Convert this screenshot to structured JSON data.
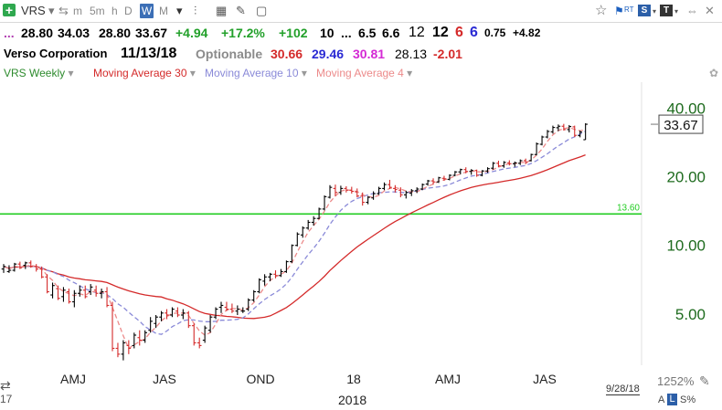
{
  "toolbar": {
    "symbol": "VRS",
    "timeframes": [
      {
        "label": "m",
        "selected": false
      },
      {
        "label": "5m",
        "selected": false
      },
      {
        "label": "h",
        "selected": false
      },
      {
        "label": "D",
        "selected": false
      },
      {
        "label": "W",
        "selected": true
      },
      {
        "label": "M",
        "selected": false
      }
    ],
    "right_icons": [
      "star-icon",
      "flag-icon",
      "rt-badge",
      "s-badge",
      "t-badge",
      "expand-icon",
      "close-icon"
    ],
    "rt_label": "RT",
    "s_label": "S",
    "t_label": "T"
  },
  "quote": {
    "dots": "...",
    "open": "28.80",
    "high": "34.03",
    "low": "28.80",
    "close": "33.67",
    "change": "+4.94",
    "change_pct": "+17.2%",
    "extra": "+102",
    "f1": "10",
    "f2": "...",
    "f3": "6.5",
    "f4": "6.6",
    "f5": "12",
    "f6": "12",
    "f7": "6",
    "f8": "6",
    "f9": "0.75",
    "f10": "+4.82"
  },
  "info": {
    "company": "Verso Corporation",
    "date": "11/13/18",
    "optionable": "Optionable",
    "v1": "30.66",
    "v2": "29.46",
    "v3": "30.81",
    "v4": "28.13",
    "v5": "-2.01"
  },
  "legend": {
    "items": [
      {
        "label": "VRS Weekly",
        "color": "#2e8b2e"
      },
      {
        "label": "Moving Average 30",
        "color": "#d42a2a"
      },
      {
        "label": "Moving Average 10",
        "color": "#8a8ad8"
      },
      {
        "label": "Moving Average 4",
        "color": "#ec8a8a"
      }
    ]
  },
  "chart_data": {
    "type": "ohlc",
    "scale": "log",
    "y_ticks": [
      {
        "value": 40,
        "label": "40.00"
      },
      {
        "value": 20,
        "label": "20.00"
      },
      {
        "value": 10,
        "label": "10.00"
      },
      {
        "value": 5,
        "label": "5.00"
      }
    ],
    "ylim": [
      2.95,
      51.5
    ],
    "x_labels": [
      "AMJ",
      "JAS",
      "OND",
      "18",
      "AMJ",
      "JAS"
    ],
    "year_label": "2018",
    "left_partial_label": "17",
    "date_label": "9/28/18",
    "last_price_label": "33.67",
    "hline": {
      "value": 13.6,
      "label": "13.60",
      "color": "#22cc22"
    },
    "colors": {
      "up": "#000000",
      "down": "#d42a2a",
      "ma30": "#d42a2a",
      "ma10": "#8a8ad8",
      "ma4": "#ec8a8a"
    },
    "ohlc": [
      [
        7.8,
        8.2,
        7.5,
        8.0
      ],
      [
        7.6,
        8.1,
        7.5,
        7.7
      ],
      [
        7.7,
        8.3,
        7.6,
        8.2
      ],
      [
        8.2,
        8.4,
        7.8,
        7.9
      ],
      [
        8.1,
        8.4,
        7.8,
        8.3
      ],
      [
        8.3,
        8.5,
        7.9,
        8.0
      ],
      [
        8.0,
        8.2,
        7.6,
        7.8
      ],
      [
        7.8,
        8.0,
        7.1,
        7.2
      ],
      [
        7.2,
        7.4,
        6.1,
        6.2
      ],
      [
        6.0,
        6.8,
        5.8,
        6.6
      ],
      [
        6.4,
        6.6,
        5.7,
        5.8
      ],
      [
        5.9,
        6.5,
        5.6,
        6.3
      ],
      [
        6.2,
        6.4,
        5.5,
        5.6
      ],
      [
        5.6,
        6.3,
        5.3,
        6.1
      ],
      [
        6.1,
        6.6,
        5.9,
        6.3
      ],
      [
        6.3,
        6.6,
        5.8,
        5.9
      ],
      [
        6.2,
        6.7,
        6.0,
        6.5
      ],
      [
        6.3,
        6.6,
        5.9,
        6.1
      ],
      [
        6.1,
        6.4,
        5.8,
        6.2
      ],
      [
        6.2,
        6.5,
        5.3,
        5.4
      ],
      [
        5.4,
        5.6,
        3.4,
        3.5
      ],
      [
        3.5,
        3.7,
        3.2,
        3.3
      ],
      [
        3.3,
        3.8,
        3.1,
        3.7
      ],
      [
        3.6,
        3.8,
        3.3,
        3.5
      ],
      [
        3.6,
        4.1,
        3.5,
        4.0
      ],
      [
        3.9,
        4.2,
        3.6,
        3.8
      ],
      [
        3.8,
        4.2,
        3.7,
        4.1
      ],
      [
        4.2,
        4.8,
        4.1,
        4.6
      ],
      [
        4.5,
        4.9,
        4.3,
        4.8
      ],
      [
        4.8,
        5.1,
        4.6,
        5.0
      ],
      [
        5.0,
        5.2,
        4.7,
        4.9
      ],
      [
        4.9,
        5.3,
        4.8,
        5.2
      ],
      [
        5.1,
        5.3,
        4.8,
        4.9
      ],
      [
        4.9,
        5.2,
        4.7,
        5.0
      ],
      [
        5.0,
        5.1,
        4.3,
        4.4
      ],
      [
        4.4,
        4.5,
        3.6,
        3.7
      ],
      [
        3.7,
        3.9,
        3.5,
        3.6
      ],
      [
        3.8,
        4.4,
        3.7,
        4.3
      ],
      [
        4.2,
        4.9,
        4.1,
        4.8
      ],
      [
        4.8,
        5.3,
        4.7,
        5.2
      ],
      [
        5.3,
        5.6,
        5.0,
        5.4
      ],
      [
        5.3,
        5.6,
        5.1,
        5.2
      ],
      [
        5.2,
        5.5,
        5.0,
        5.1
      ],
      [
        5.1,
        5.4,
        4.9,
        5.2
      ],
      [
        5.1,
        5.3,
        5.0,
        5.1
      ],
      [
        5.2,
        5.8,
        5.1,
        5.7
      ],
      [
        5.7,
        6.3,
        5.6,
        6.2
      ],
      [
        6.2,
        7.1,
        6.1,
        7.0
      ],
      [
        6.9,
        7.4,
        6.6,
        7.2
      ],
      [
        7.2,
        7.5,
        6.9,
        7.4
      ],
      [
        7.4,
        7.7,
        7.1,
        7.3
      ],
      [
        7.3,
        7.8,
        7.2,
        7.6
      ],
      [
        7.6,
        8.5,
        7.5,
        8.4
      ],
      [
        8.4,
        10.0,
        8.3,
        9.9
      ],
      [
        9.9,
        11.3,
        9.8,
        11.1
      ],
      [
        11.0,
        12.0,
        10.7,
        11.8
      ],
      [
        11.8,
        12.8,
        11.6,
        12.5
      ],
      [
        12.5,
        13.3,
        12.1,
        13.0
      ],
      [
        13.0,
        14.5,
        12.9,
        14.3
      ],
      [
        14.3,
        16.4,
        14.1,
        16.2
      ],
      [
        16.1,
        18.2,
        15.9,
        17.8
      ],
      [
        17.6,
        18.3,
        16.3,
        16.9
      ],
      [
        16.9,
        18.1,
        16.5,
        17.6
      ],
      [
        17.6,
        18.0,
        16.9,
        17.3
      ],
      [
        17.3,
        17.9,
        16.7,
        17.1
      ],
      [
        17.0,
        17.6,
        16.1,
        16.3
      ],
      [
        16.3,
        16.9,
        14.8,
        15.3
      ],
      [
        15.3,
        16.3,
        15.0,
        16.1
      ],
      [
        16.0,
        17.1,
        15.7,
        16.7
      ],
      [
        16.7,
        17.9,
        16.5,
        17.6
      ],
      [
        17.6,
        18.7,
        17.3,
        18.3
      ],
      [
        18.3,
        19.2,
        17.5,
        17.8
      ],
      [
        17.6,
        18.2,
        16.9,
        17.4
      ],
      [
        17.3,
        17.8,
        16.1,
        16.5
      ],
      [
        16.5,
        17.2,
        15.9,
        16.9
      ],
      [
        16.8,
        17.5,
        16.3,
        17.2
      ],
      [
        17.2,
        17.8,
        16.8,
        17.5
      ],
      [
        17.5,
        18.5,
        17.3,
        18.3
      ],
      [
        18.4,
        19.2,
        18.1,
        19.0
      ],
      [
        19.0,
        19.5,
        18.3,
        18.8
      ],
      [
        18.8,
        19.8,
        18.6,
        19.6
      ],
      [
        19.5,
        20.0,
        19.0,
        19.4
      ],
      [
        19.3,
        20.3,
        19.1,
        20.1
      ],
      [
        20.1,
        21.0,
        19.9,
        20.8
      ],
      [
        20.8,
        21.5,
        20.3,
        21.3
      ],
      [
        21.3,
        21.8,
        20.5,
        20.9
      ],
      [
        20.9,
        21.4,
        20.2,
        21.1
      ],
      [
        21.1,
        21.3,
        19.8,
        20.1
      ],
      [
        20.1,
        21.2,
        19.9,
        21.0
      ],
      [
        21.0,
        21.8,
        20.6,
        21.5
      ],
      [
        21.6,
        23.0,
        21.3,
        22.7
      ],
      [
        22.7,
        23.3,
        21.8,
        22.1
      ],
      [
        22.1,
        23.2,
        21.7,
        22.9
      ],
      [
        22.8,
        23.4,
        22.2,
        22.6
      ],
      [
        22.6,
        23.1,
        21.9,
        22.8
      ],
      [
        22.7,
        23.6,
        22.3,
        23.3
      ],
      [
        23.3,
        23.8,
        22.5,
        22.9
      ],
      [
        23.3,
        25.0,
        23.1,
        24.8
      ],
      [
        24.8,
        28.0,
        24.6,
        27.6
      ],
      [
        27.5,
        30.0,
        27.2,
        29.6
      ],
      [
        29.6,
        31.8,
        29.2,
        31.3
      ],
      [
        31.2,
        33.2,
        30.6,
        32.6
      ],
      [
        32.5,
        33.6,
        31.4,
        33.0
      ],
      [
        33.0,
        33.8,
        31.6,
        31.9
      ],
      [
        31.9,
        33.4,
        31.0,
        32.9
      ],
      [
        32.8,
        33.2,
        29.6,
        30.1
      ],
      [
        30.0,
        31.6,
        29.5,
        31.1
      ],
      [
        28.8,
        34.03,
        28.8,
        33.67
      ]
    ]
  },
  "status": {
    "zoom": "1252%",
    "a_label": "A",
    "l_label": "L",
    "s_label": "S%"
  }
}
